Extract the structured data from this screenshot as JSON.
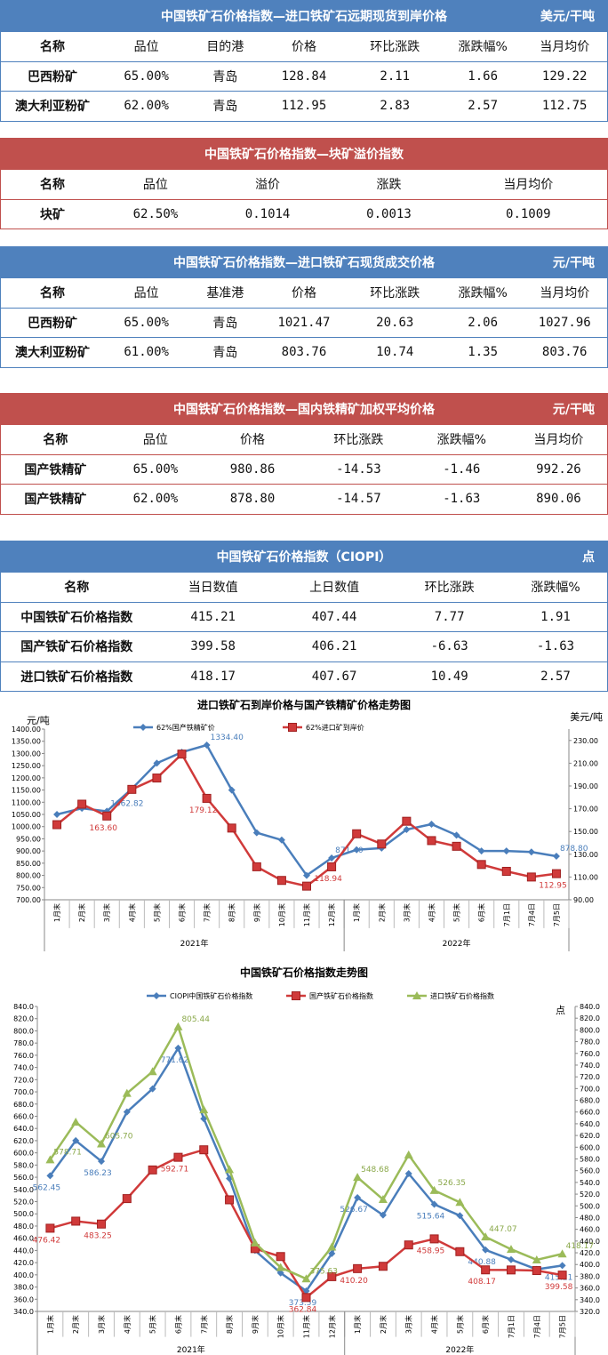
{
  "tables": [
    {
      "title": "中国铁矿石价格指数—进口铁矿石远期现货到岸价格",
      "unit": "美元/干吨",
      "color": "#4f81bd",
      "headers": [
        "名称",
        "品位",
        "目的港",
        "价格",
        "环比涨跌",
        "涨跌幅%",
        "当月均价"
      ],
      "rows": [
        [
          "巴西粉矿",
          "65.00%",
          "青岛",
          "128.84",
          "2.11",
          "1.66",
          "129.22"
        ],
        [
          "澳大利亚粉矿",
          "62.00%",
          "青岛",
          "112.95",
          "2.83",
          "2.57",
          "112.75"
        ]
      ]
    },
    {
      "title": "中国铁矿石价格指数—块矿溢价指数",
      "unit": "",
      "color": "#c0504d",
      "headers": [
        "名称",
        "品位",
        "溢价",
        "涨跌",
        "当月均价"
      ],
      "rows": [
        [
          "块矿",
          "62.50%",
          "0.1014",
          "0.0013",
          "0.1009"
        ]
      ]
    },
    {
      "title": "中国铁矿石价格指数—进口铁矿石现货成交价格",
      "unit": "元/干吨",
      "color": "#4f81bd",
      "headers": [
        "名称",
        "品位",
        "基准港",
        "价格",
        "环比涨跌",
        "涨跌幅%",
        "当月均价"
      ],
      "rows": [
        [
          "巴西粉矿",
          "65.00%",
          "青岛",
          "1021.47",
          "20.63",
          "2.06",
          "1027.96"
        ],
        [
          "澳大利亚粉矿",
          "61.00%",
          "青岛",
          "803.76",
          "10.74",
          "1.35",
          "803.76"
        ]
      ]
    },
    {
      "title": "中国铁矿石价格指数—国内铁精矿加权平均价格",
      "unit": "元/干吨",
      "color": "#c0504d",
      "headers": [
        "名称",
        "品位",
        "价格",
        "环比涨跌",
        "涨跌幅%",
        "当月均价"
      ],
      "rows": [
        [
          "国产铁精矿",
          "65.00%",
          "980.86",
          "-14.53",
          "-1.46",
          "992.26"
        ],
        [
          "国产铁精矿",
          "62.00%",
          "878.80",
          "-14.57",
          "-1.63",
          "890.06"
        ]
      ]
    },
    {
      "title": "中国铁矿石价格指数（CIOPI）",
      "unit": "点",
      "color": "#4f81bd",
      "headers": [
        "名称",
        "当日数值",
        "上日数值",
        "环比涨跌",
        "涨跌幅%"
      ],
      "rows": [
        [
          "中国铁矿石价格指数",
          "415.21",
          "407.44",
          "7.77",
          "1.91"
        ],
        [
          "国产铁矿石价格指数",
          "399.58",
          "406.21",
          "-6.63",
          "-1.63"
        ],
        [
          "进口铁矿石价格指数",
          "418.17",
          "407.67",
          "10.49",
          "2.57"
        ]
      ]
    }
  ],
  "chart_data": [
    {
      "type": "line",
      "title": "进口铁矿石到岸价格与国产铁精矿价格走势图",
      "ylabel": "元/吨",
      "y2label": "美元/吨",
      "categories": [
        "1月末",
        "2月末",
        "3月末",
        "4月末",
        "5月末",
        "6月末",
        "7月末",
        "8月末",
        "9月末",
        "10月末",
        "11月末",
        "12月末",
        "1月末",
        "2月末",
        "3月末",
        "4月末",
        "5月末",
        "6月末",
        "7月1日",
        "7月4日",
        "7月5日"
      ],
      "groups": [
        {
          "label": "2021年",
          "count": 12
        },
        {
          "label": "2022年",
          "count": 9
        }
      ],
      "ylim": [
        700,
        1400
      ],
      "yticks": [
        "700.00",
        "750.00",
        "800.00",
        "850.00",
        "900.00",
        "950.00",
        "1000.00",
        "1050.00",
        "1100.00",
        "1150.00",
        "1200.00",
        "1250.00",
        "1300.00",
        "1350.00",
        "1400.00"
      ],
      "y2lim": [
        90,
        240
      ],
      "y2ticks": [
        "90.00",
        "110.00",
        "130.00",
        "150.00",
        "170.00",
        "190.00",
        "210.00",
        "230.00"
      ],
      "series": [
        {
          "name": "62%国产铁精矿价",
          "color": "#4a7ebb",
          "marker": "diamond",
          "axis": "left",
          "values": [
            1050,
            1075,
            1063,
            1155,
            1260,
            1305,
            1334.4,
            1150,
            975,
            945,
            800,
            871.4,
            905,
            912,
            988,
            1010,
            965,
            900,
            900,
            896,
            878.8
          ],
          "labels": [
            null,
            null,
            "1062.82",
            null,
            null,
            null,
            "1334.40",
            null,
            null,
            null,
            null,
            "871.40",
            null,
            null,
            null,
            null,
            null,
            null,
            null,
            null,
            "878.80"
          ]
        },
        {
          "name": "62%进口矿到岸价",
          "color": "#d03a3a",
          "marker": "square",
          "axis": "right",
          "values": [
            156,
            174,
            163.6,
            187,
            197,
            218,
            179.12,
            153,
            119,
            107,
            102,
            118.94,
            148,
            139,
            159,
            142,
            137,
            121,
            115,
            110,
            112.95
          ],
          "labels": [
            null,
            null,
            "163.60",
            null,
            null,
            null,
            "179.12",
            null,
            null,
            null,
            null,
            "118.94",
            null,
            null,
            null,
            null,
            null,
            null,
            null,
            null,
            "112.95"
          ]
        }
      ]
    },
    {
      "type": "line",
      "title": "中国铁矿石价格指数走势图",
      "y2label": "点",
      "categories": [
        "1月末",
        "2月末",
        "3月末",
        "4月末",
        "5月末",
        "6月末",
        "7月末",
        "8月末",
        "9月末",
        "10月末",
        "11月末",
        "12月末",
        "1月末",
        "2月末",
        "3月末",
        "4月末",
        "5月末",
        "6月末",
        "7月1日",
        "7月4日",
        "7月5日"
      ],
      "groups": [
        {
          "label": "2021年",
          "count": 12
        },
        {
          "label": "2022年",
          "count": 9
        }
      ],
      "ylim": [
        340,
        840
      ],
      "yticks": [
        "340.0",
        "360.0",
        "380.0",
        "400.0",
        "420.0",
        "440.0",
        "460.0",
        "480.0",
        "500.0",
        "520.0",
        "540.0",
        "560.0",
        "580.0",
        "600.0",
        "620.0",
        "640.0",
        "660.0",
        "680.0",
        "700.0",
        "720.0",
        "740.0",
        "760.0",
        "780.0",
        "800.0",
        "820.0",
        "840.0"
      ],
      "y2lim": [
        320,
        840
      ],
      "y2ticks": [
        "320.0",
        "340.0",
        "360.0",
        "380.0",
        "400.0",
        "420.0",
        "440.0",
        "460.0",
        "480.0",
        "500.0",
        "520.0",
        "540.0",
        "560.0",
        "580.0",
        "600.0",
        "620.0",
        "640.0",
        "660.0",
        "680.0",
        "700.0",
        "720.0",
        "740.0",
        "760.0",
        "780.0",
        "800.0",
        "820.0",
        "840.0"
      ],
      "series": [
        {
          "name": "CIOPI中国铁矿石价格指数",
          "color": "#4a7ebb",
          "marker": "diamond",
          "axis": "left",
          "values": [
            562.45,
            620,
            586.23,
            667,
            705,
            771.62,
            656,
            558,
            440,
            403,
            373.59,
            435,
            526.67,
            498,
            566,
            515.64,
            497,
            440.88,
            425,
            409,
            415.21
          ],
          "labels": [
            "562.45",
            null,
            "586.23",
            null,
            null,
            "771.62",
            null,
            null,
            null,
            null,
            "373.59",
            null,
            "526.67",
            null,
            null,
            "515.64",
            null,
            "440.88",
            null,
            null,
            "415.21"
          ]
        },
        {
          "name": "国产铁矿石价格指数",
          "color": "#d03a3a",
          "marker": "square",
          "axis": "left",
          "values": [
            476.42,
            488,
            483.25,
            525,
            572,
            592.71,
            605,
            523,
            443,
            430,
            362.84,
            397,
            410.2,
            414,
            449,
            458.95,
            438,
            408.17,
            408,
            407,
            399.58
          ],
          "labels": [
            "476.42",
            null,
            "483.25",
            null,
            null,
            "592.71",
            null,
            null,
            null,
            null,
            "362.84",
            null,
            "410.20",
            null,
            null,
            "458.95",
            null,
            "408.17",
            null,
            null,
            "399.58"
          ]
        },
        {
          "name": "进口铁矿石价格指数",
          "color": "#9bbb59",
          "marker": "triangle",
          "axis": "right",
          "values": [
            578.71,
            643,
            605.7,
            692,
            729,
            805.44,
            664,
            562,
            437,
            395,
            375.63,
            430,
            548.68,
            511,
            587,
            526.35,
            506,
            447.07,
            426,
            408,
            418.17
          ],
          "labels": [
            "578.71",
            null,
            "605.70",
            null,
            null,
            "805.44",
            null,
            null,
            null,
            null,
            "375.63",
            null,
            "548.68",
            null,
            null,
            "526.35",
            null,
            "447.07",
            null,
            null,
            "418.17"
          ]
        }
      ]
    }
  ]
}
